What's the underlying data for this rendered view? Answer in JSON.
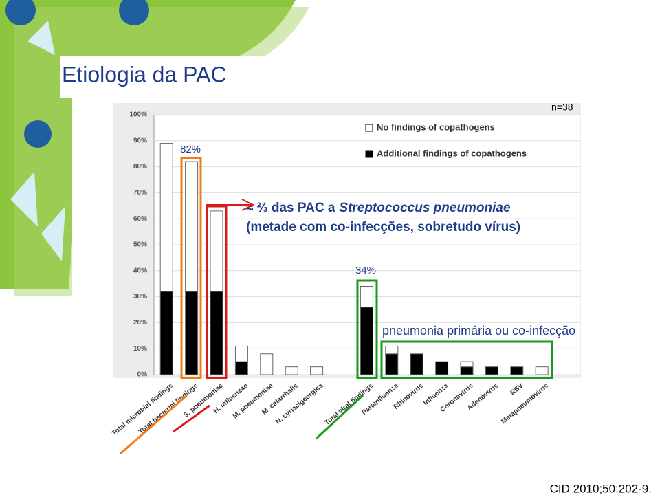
{
  "chart_data": {
    "type": "stacked-bar",
    "title": "Etiologia da PAC",
    "annotations": {
      "n": "n=38",
      "bacterial_pct": "82%",
      "viral_pct": "34%",
      "main_prefix": "≈ ⅔ das PAC a",
      "main_species": "Streptococcus pneumoniae",
      "main_sub": "(metade com co-infecções, sobretudo vírus)",
      "viral_note": "pneumonia primária ou co-infecção",
      "source": "CID 2010;50:202-9."
    },
    "categories": [
      "Total microbial findings",
      "Total bacterial findings",
      "S. pneumoniae",
      "H. influenzae",
      "M. pneumoniae",
      "M. catarrhalis",
      "N. cyriacigeorgica",
      null,
      "Total viral findings",
      "Parainfluenza",
      "Rhinovirus",
      "Influenza",
      "Coronavirus",
      "Adenovirus",
      "RSV",
      "Metapneumovirus"
    ],
    "series": [
      {
        "name": "Additional findings of copathogens",
        "color": "#000000",
        "values": [
          32,
          32,
          32,
          5,
          0,
          0,
          0,
          null,
          26,
          8,
          8,
          5,
          3,
          3,
          3,
          0
        ]
      },
      {
        "name": "No findings of copathogens",
        "color": "#ffffff",
        "values": [
          57,
          50,
          31,
          6,
          8,
          3,
          3,
          null,
          8,
          3,
          0,
          0,
          2,
          0,
          0,
          3
        ]
      }
    ],
    "ylim": [
      0,
      100
    ],
    "yticks": [
      {
        "value": 0,
        "label": "0%"
      },
      {
        "value": 10,
        "label": "10%"
      },
      {
        "value": 20,
        "label": "20%"
      },
      {
        "value": 30,
        "label": "30%"
      },
      {
        "value": 40,
        "label": "40%"
      },
      {
        "value": 50,
        "label": "50%"
      },
      {
        "value": 60,
        "label": "60%"
      },
      {
        "value": 70,
        "label": "70%"
      },
      {
        "value": 80,
        "label": "80%"
      },
      {
        "value": 90,
        "label": "90%"
      },
      {
        "value": 100,
        "label": "100%"
      }
    ],
    "grid": true
  }
}
